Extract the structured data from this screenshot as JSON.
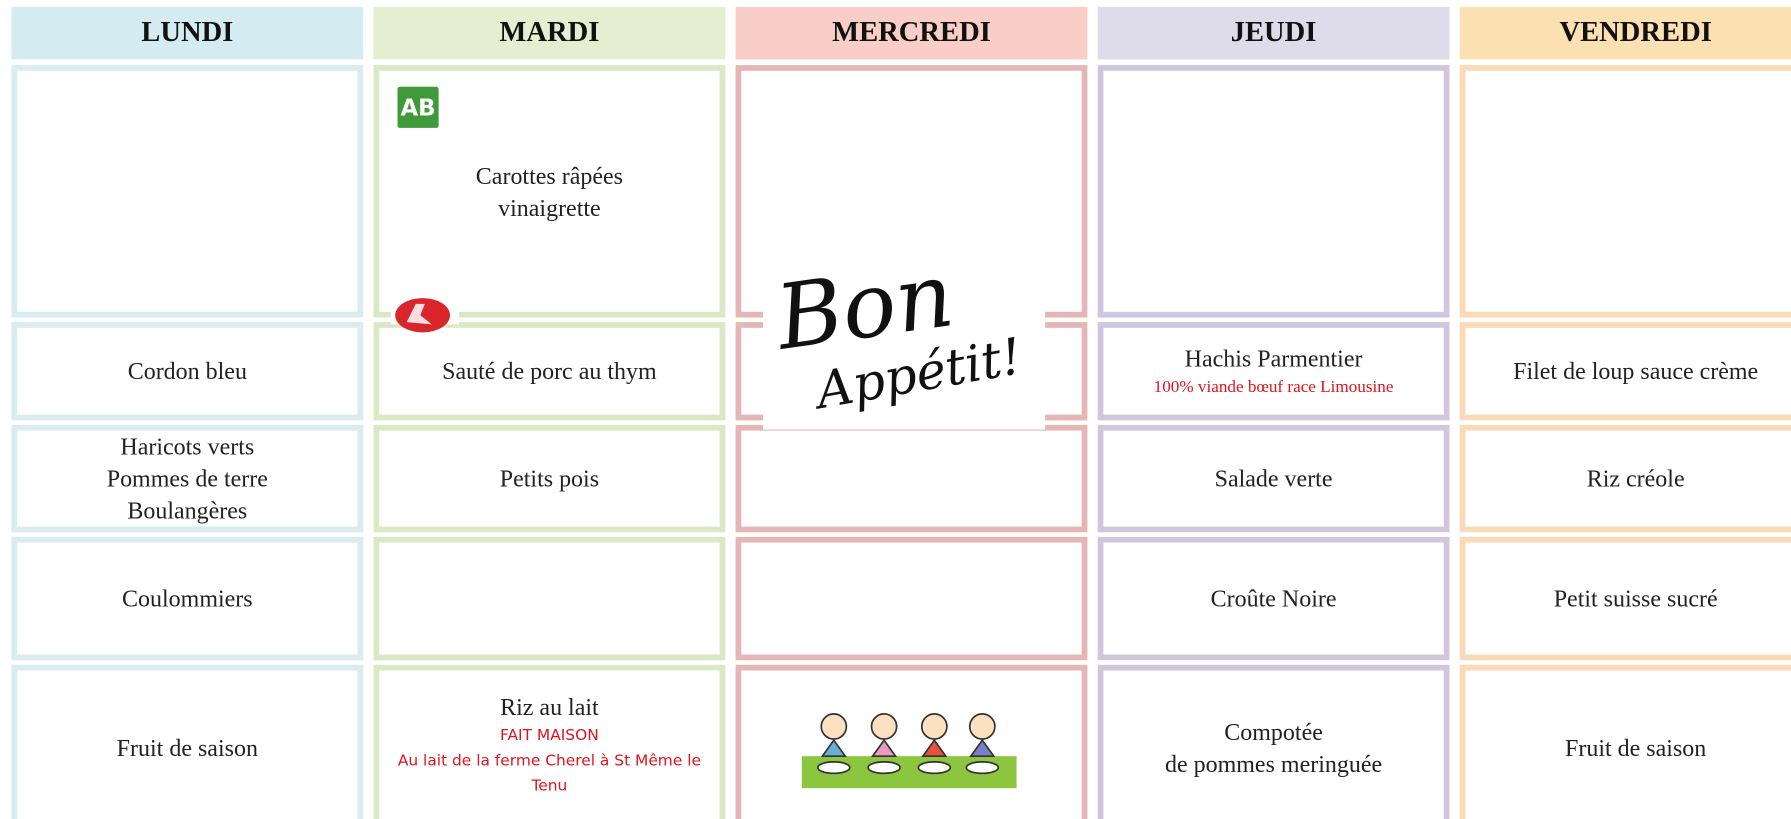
{
  "days": [
    {
      "name": "LUNDI",
      "rows": [
        null,
        {
          "lines": [
            "Cordon bleu"
          ]
        },
        {
          "lines": [
            "Haricots verts",
            "Pommes de terre",
            "Boulangères"
          ]
        },
        {
          "lines": [
            "Coulommiers"
          ]
        },
        {
          "lines": [
            "Fruit de saison"
          ]
        }
      ]
    },
    {
      "name": "MARDI",
      "rows": [
        {
          "lines": [
            "Carottes râpées",
            "vinaigrette"
          ]
        },
        {
          "lines": [
            "Sauté de porc au thym"
          ]
        },
        {
          "lines": [
            "Petits pois"
          ]
        },
        null,
        {
          "lines": [
            "Riz au lait"
          ],
          "notes": [
            "FAIT MAISON",
            "Au lait de la ferme Cherel à St Même le Tenu"
          ]
        }
      ]
    },
    {
      "name": "MERCREDI",
      "rows": [
        null,
        null,
        null,
        null,
        null
      ]
    },
    {
      "name": "JEUDI",
      "rows": [
        null,
        {
          "lines": [
            "Hachis Parmentier"
          ],
          "notes": [
            "100% viande bœuf race Limousine"
          ]
        },
        {
          "lines": [
            "Salade verte"
          ]
        },
        {
          "lines": [
            "Croûte Noire"
          ]
        },
        {
          "lines": [
            "Compotée",
            "de pommes meringuée"
          ]
        }
      ]
    },
    {
      "name": "VENDREDI",
      "rows": [
        null,
        {
          "lines": [
            "Filet de loup sauce crème"
          ]
        },
        {
          "lines": [
            "Riz créole"
          ]
        },
        {
          "lines": [
            "Petit suisse sucré"
          ]
        },
        {
          "lines": [
            "Fruit de saison"
          ]
        }
      ]
    }
  ],
  "logo_ab": "AB",
  "bon_appetit": [
    "Bon",
    "Appétit!"
  ]
}
